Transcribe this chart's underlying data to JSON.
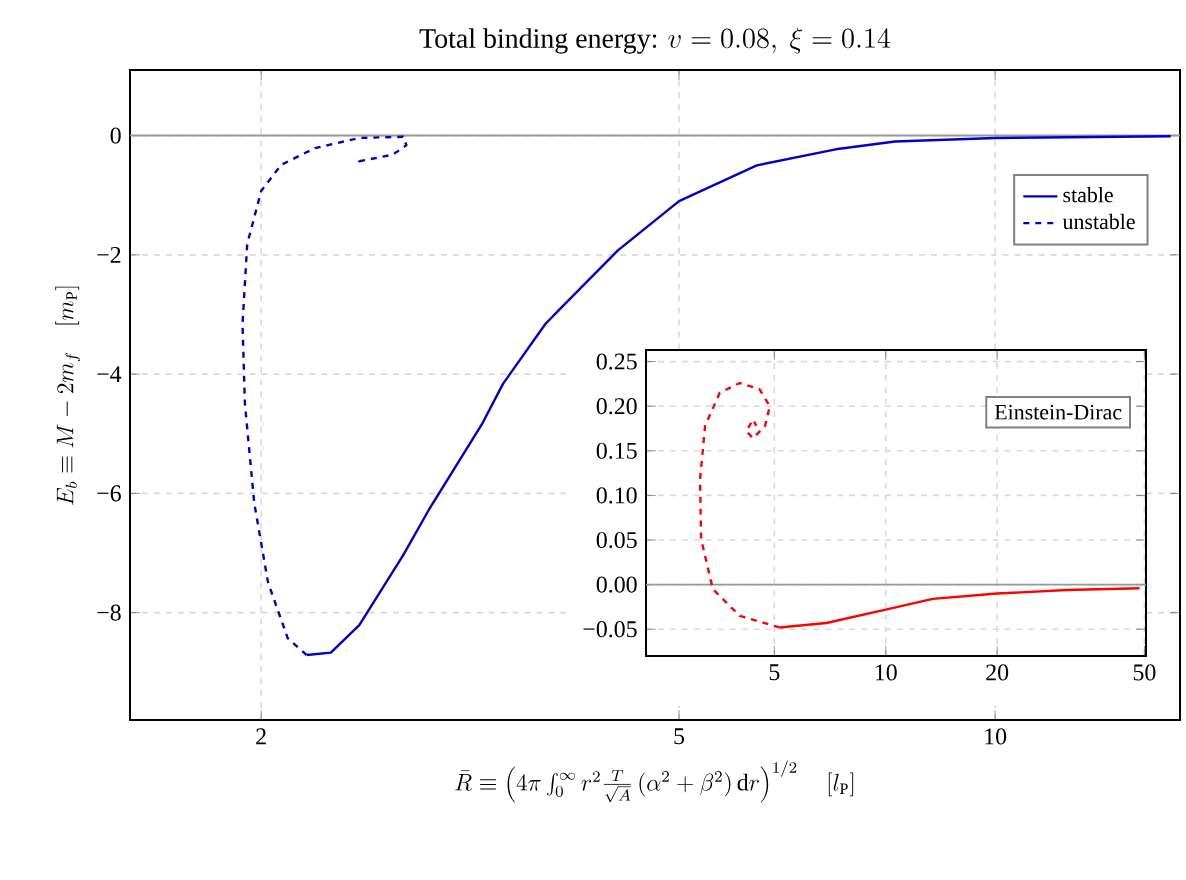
{
  "chart_data": [
    {
      "type": "line",
      "title": "\\mbox{Total binding energy: } v = 0.08,\\ \\xi = 0.14",
      "xlabel": "\\bar{R} \\equiv \\left(4\\pi\\int_0^\\infty r^2 \\frac{T}{\\sqrt{A}}\\left(\\alpha^2+\\beta^2\\right)\\mathrm{d}r\\right)^{1/2}\\quad [l_\\mathrm{P}]",
      "ylabel": "E_b \\equiv M - 2m_f\\quad [m_\\mathrm{P}]",
      "log": "x",
      "xlim": [
        1.5,
        15
      ],
      "ylim": [
        -9.8,
        1.1
      ],
      "xticks": [
        2,
        5,
        10
      ],
      "yticks": [
        0,
        {
          "value": -2,
          "label": "−2"
        },
        {
          "value": -4,
          "label": "−4"
        },
        {
          "value": -6,
          "label": "−6"
        },
        {
          "value": -8,
          "label": "−8"
        }
      ],
      "grid": true,
      "legend": "top right",
      "ref_lines": [
        {
          "axis": "y",
          "value": 0,
          "color": "#999999"
        }
      ],
      "series": [
        {
          "name": "stable",
          "color": "#0000cc",
          "line_style": "solid",
          "x": [
            2.21,
            2.33,
            2.48,
            2.73,
            2.89,
            3.25,
            3.4,
            3.73,
            3.84,
            4.37,
            5,
            5.93,
            7.05,
            8.03,
            10,
            14.7
          ],
          "values": [
            -8.71,
            -8.67,
            -8.21,
            -7.04,
            -6.27,
            -4.82,
            -4.16,
            -3.16,
            -2.93,
            -1.93,
            -1.1,
            -0.5,
            -0.23,
            -0.1,
            -0.04,
            -0.01
          ]
        },
        {
          "name": "unstable",
          "color": "#0000cc",
          "line_style": "dashed",
          "x": [
            2.21,
            2.12,
            2.03,
            1.97,
            1.93,
            1.92,
            1.94,
            2.0,
            2.09,
            2.25,
            2.48,
            2.73,
            2.75,
            2.67,
            2.48,
            2.5
          ],
          "values": [
            -8.71,
            -8.43,
            -7.49,
            -6.16,
            -4.49,
            -3.16,
            -1.82,
            -0.93,
            -0.49,
            -0.21,
            -0.04,
            -0.02,
            -0.16,
            -0.32,
            -0.43,
            -0.36
          ]
        }
      ]
    },
    {
      "type": "line",
      "annotations": [
        "Einstein-Dirac"
      ],
      "log": "x",
      "xlim": [
        2.25,
        50.5
      ],
      "ylim": [
        -0.08,
        0.263
      ],
      "xticks": [
        5,
        10,
        20,
        50
      ],
      "yticks": [
        {
          "value": 0.25,
          "label": "0.25"
        },
        {
          "value": 0.2,
          "label": "0.20"
        },
        {
          "value": 0.15,
          "label": "0.15"
        },
        {
          "value": 0.1,
          "label": "0.10"
        },
        {
          "value": 0.05,
          "label": "0.05"
        },
        {
          "value": 0,
          "label": "0.00"
        },
        {
          "value": -0.05,
          "label": "−0.05"
        }
      ],
      "grid": true,
      "ref_lines": [
        {
          "axis": "y",
          "value": 0,
          "color": "#999999"
        }
      ],
      "series": [
        {
          "color": "#ff0000",
          "line_style": "solid",
          "x": [
            5.17,
            6.91,
            10,
            13.4,
            20,
            30.8,
            48.5
          ],
          "values": [
            -0.048,
            -0.043,
            -0.028,
            -0.016,
            -0.01,
            -0.006,
            -0.004
          ]
        },
        {
          "color": "#ff0000",
          "line_style": "dashed",
          "x": [
            5.17,
            4.03,
            3.41,
            3.17,
            3.15,
            3.25,
            3.56,
            4.03,
            4.56,
            4.86,
            4.72,
            4.38,
            4.2,
            4.38,
            4.47
          ],
          "values": [
            -0.048,
            -0.035,
            -0.005,
            0.051,
            0.118,
            0.178,
            0.215,
            0.226,
            0.219,
            0.2,
            0.178,
            0.164,
            0.172,
            0.185,
            0.178
          ]
        }
      ]
    }
  ]
}
